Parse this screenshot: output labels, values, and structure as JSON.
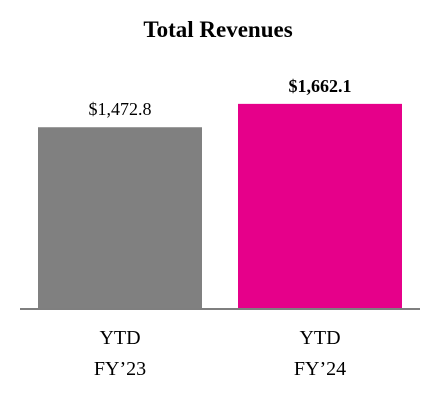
{
  "chart_data": {
    "type": "bar",
    "title": "Total Revenues",
    "categories": [
      [
        "YTD",
        "FY’23"
      ],
      [
        "YTD",
        "FY’24"
      ]
    ],
    "values": [
      1472.8,
      1662.1
    ],
    "data_labels": [
      "$1,472.8",
      "$1,662.1"
    ],
    "data_label_bold": [
      false,
      true
    ],
    "colors": [
      "#808080",
      "#e6008a"
    ],
    "axis_color": "#7f7f7f",
    "xlabel": "",
    "ylabel": "",
    "ylim": [
      0,
      2050
    ],
    "grid": false,
    "legend": "none"
  }
}
